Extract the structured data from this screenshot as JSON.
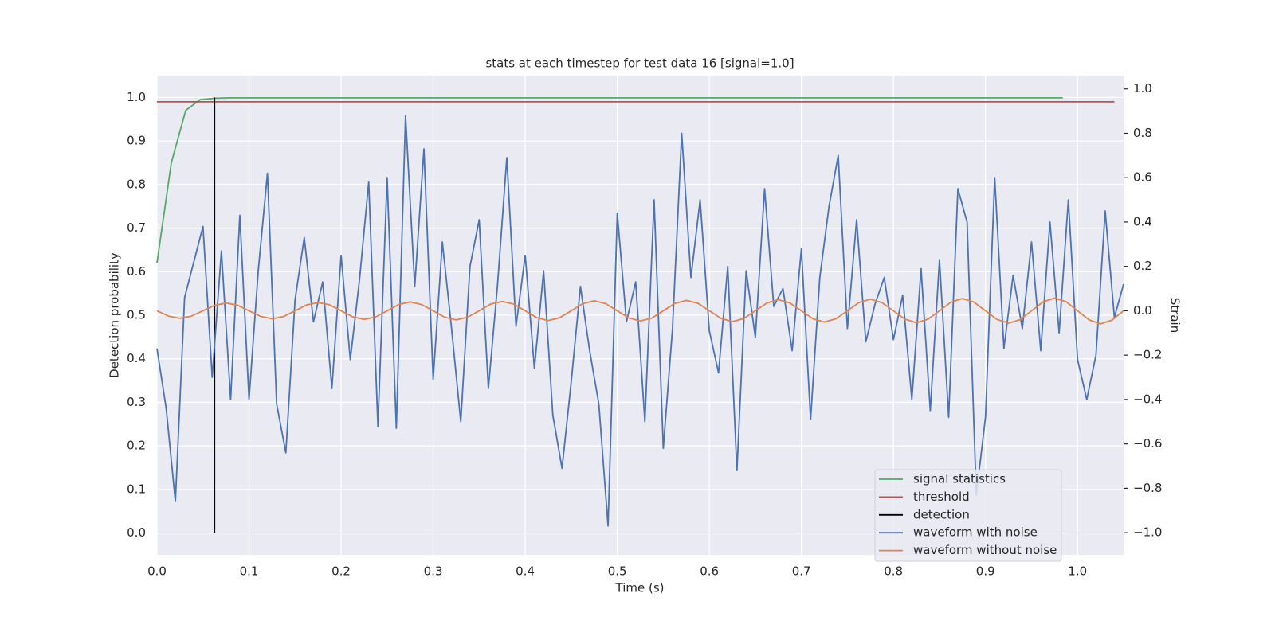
{
  "chart_data": {
    "type": "line",
    "title": "stats at each timestep for test data 16 [signal=1.0]",
    "xlabel": "Time (s)",
    "ylabel": "Detection probability",
    "y2label": "Strain",
    "xlim": [
      0,
      1.05
    ],
    "ylim": [
      -0.05,
      1.05
    ],
    "y2lim": [
      -1.1,
      1.06
    ],
    "xticks": [
      {
        "value": 0,
        "label": "0.0"
      },
      0.1,
      0.2,
      0.3,
      0.4,
      0.5,
      0.6,
      0.7,
      0.8,
      0.9,
      {
        "value": 1,
        "label": "1.0"
      }
    ],
    "yticks": [
      {
        "value": 0,
        "label": "0.0"
      },
      0.1,
      0.2,
      0.3,
      0.4,
      0.5,
      0.6,
      0.7,
      0.8,
      0.9,
      {
        "value": 1,
        "label": "1.0"
      }
    ],
    "y2ticks": [
      {
        "value": -1,
        "label": "−1.0"
      },
      {
        "value": -0.8,
        "label": "−0.8"
      },
      {
        "value": -0.6,
        "label": "−0.6"
      },
      {
        "value": -0.4,
        "label": "−0.4"
      },
      {
        "value": -0.2,
        "label": "−0.2"
      },
      {
        "value": 0,
        "label": "0.0"
      },
      0.2,
      0.4,
      0.6,
      0.8,
      {
        "value": 1,
        "label": "1.0"
      }
    ],
    "grid": true,
    "legend": "lower right",
    "series": [
      {
        "name": "signal statistics",
        "color": "#55a868",
        "axis": "y",
        "x": [
          0,
          0.0156,
          0.0312,
          0.0469,
          0.0625,
          0.0781,
          0.984
        ],
        "values": [
          0.62,
          0.85,
          0.97,
          0.995,
          0.998,
          0.999,
          0.999
        ]
      },
      {
        "name": "threshold",
        "color": "#c44e52",
        "axis": "y",
        "x": [
          0,
          1.04
        ],
        "values": [
          0.99,
          0.99
        ]
      },
      {
        "name": "detection",
        "color": "#000000",
        "axis": "y",
        "x": [
          0.0625,
          0.0625
        ],
        "values": [
          0,
          1
        ]
      },
      {
        "name": "waveform with noise",
        "color": "#4c72b0",
        "axis": "y2",
        "x": [
          0,
          0.01,
          0.02,
          0.03,
          0.04,
          0.05,
          0.06,
          0.07,
          0.08,
          0.09,
          0.1,
          0.11,
          0.12,
          0.13,
          0.14,
          0.15,
          0.16,
          0.17,
          0.18,
          0.19,
          0.2,
          0.21,
          0.22,
          0.23,
          0.24,
          0.25,
          0.26,
          0.27,
          0.28,
          0.29,
          0.3,
          0.31,
          0.32,
          0.33,
          0.34,
          0.35,
          0.36,
          0.37,
          0.38,
          0.39,
          0.4,
          0.41,
          0.42,
          0.43,
          0.44,
          0.45,
          0.46,
          0.47,
          0.48,
          0.49,
          0.5,
          0.51,
          0.52,
          0.53,
          0.54,
          0.55,
          0.56,
          0.57,
          0.58,
          0.59,
          0.6,
          0.61,
          0.62,
          0.63,
          0.64,
          0.65,
          0.66,
          0.67,
          0.68,
          0.69,
          0.7,
          0.71,
          0.72,
          0.73,
          0.74,
          0.75,
          0.76,
          0.77,
          0.78,
          0.79,
          0.8,
          0.81,
          0.82,
          0.83,
          0.84,
          0.85,
          0.86,
          0.87,
          0.88,
          0.89,
          0.9,
          0.91,
          0.92,
          0.93,
          0.94,
          0.95,
          0.96,
          0.97,
          0.98,
          0.99,
          1,
          1.01,
          1.02,
          1.03,
          1.04,
          1.05
        ],
        "values": [
          -0.17,
          -0.44,
          -0.86,
          0.06,
          0.22,
          0.38,
          -0.3,
          0.27,
          -0.4,
          0.43,
          -0.4,
          0.18,
          0.62,
          -0.42,
          -0.64,
          0.05,
          0.33,
          -0.05,
          0.13,
          -0.35,
          0.25,
          -0.22,
          0.14,
          0.58,
          -0.52,
          0.6,
          -0.53,
          0.88,
          0.11,
          0.73,
          -0.31,
          0.31,
          -0.08,
          -0.5,
          0.2,
          0.41,
          -0.35,
          0.12,
          0.69,
          -0.07,
          0.25,
          -0.26,
          0.18,
          -0.47,
          -0.71,
          -0.32,
          0.11,
          -0.18,
          -0.42,
          -0.97,
          0.44,
          -0.05,
          0.13,
          -0.5,
          0.5,
          -0.62,
          -0.08,
          0.8,
          0.15,
          0.5,
          -0.09,
          -0.28,
          0.2,
          -0.72,
          0.18,
          -0.12,
          0.55,
          0.02,
          0.1,
          -0.18,
          0.28,
          -0.49,
          0.15,
          0.47,
          0.7,
          -0.08,
          0.41,
          -0.14,
          0.03,
          0.15,
          -0.13,
          0.07,
          -0.4,
          0.19,
          -0.45,
          0.23,
          -0.48,
          0.55,
          0.4,
          -0.83,
          -0.48,
          0.6,
          -0.17,
          0.16,
          -0.08,
          0.31,
          -0.18,
          0.4,
          -0.1,
          0.5,
          -0.22,
          -0.4,
          -0.2,
          0.45,
          -0.03,
          0.12
        ]
      },
      {
        "name": "waveform without noise",
        "color": "#dd8452",
        "axis": "y2",
        "x": [
          0,
          0.0125,
          0.025,
          0.0375,
          0.05,
          0.0625,
          0.075,
          0.0875,
          0.1,
          0.1125,
          0.125,
          0.1375,
          0.15,
          0.1625,
          0.175,
          0.1875,
          0.2,
          0.2125,
          0.225,
          0.2375,
          0.25,
          0.2625,
          0.275,
          0.2875,
          0.3,
          0.3125,
          0.325,
          0.3375,
          0.35,
          0.3625,
          0.375,
          0.3875,
          0.4,
          0.4125,
          0.425,
          0.4375,
          0.45,
          0.4625,
          0.475,
          0.4875,
          0.5,
          0.5125,
          0.525,
          0.5375,
          0.55,
          0.5625,
          0.575,
          0.5875,
          0.6,
          0.6125,
          0.625,
          0.6375,
          0.65,
          0.6625,
          0.675,
          0.6875,
          0.7,
          0.7125,
          0.725,
          0.7375,
          0.75,
          0.7625,
          0.775,
          0.7875,
          0.8,
          0.8125,
          0.825,
          0.8375,
          0.85,
          0.8625,
          0.875,
          0.8875,
          0.9,
          0.9125,
          0.925,
          0.9375,
          0.95,
          0.9625,
          0.975,
          0.9875,
          1,
          1.0125,
          1.025,
          1.0375,
          1.05
        ],
        "values": [
          0,
          -0.024,
          -0.034,
          -0.024,
          0,
          0.024,
          0.035,
          0.025,
          0,
          -0.025,
          -0.036,
          -0.026,
          0,
          0.026,
          0.037,
          0.027,
          0,
          -0.027,
          -0.039,
          -0.028,
          0,
          0.028,
          0.04,
          0.028,
          0,
          -0.029,
          -0.041,
          -0.029,
          0,
          0.03,
          0.042,
          0.03,
          0,
          -0.031,
          -0.044,
          -0.031,
          0,
          0.032,
          0.045,
          0.032,
          0,
          -0.032,
          -0.046,
          -0.033,
          0,
          0.033,
          0.047,
          0.034,
          0,
          -0.034,
          -0.049,
          -0.035,
          0,
          0.035,
          0.05,
          0.035,
          0,
          -0.036,
          -0.051,
          -0.036,
          0,
          0.037,
          0.052,
          0.037,
          0,
          -0.038,
          -0.054,
          -0.038,
          0,
          0.039,
          0.055,
          0.039,
          0,
          -0.039,
          -0.056,
          -0.04,
          0,
          0.04,
          0.057,
          0.041,
          0,
          -0.041,
          -0.059,
          -0.042,
          0
        ]
      }
    ]
  }
}
